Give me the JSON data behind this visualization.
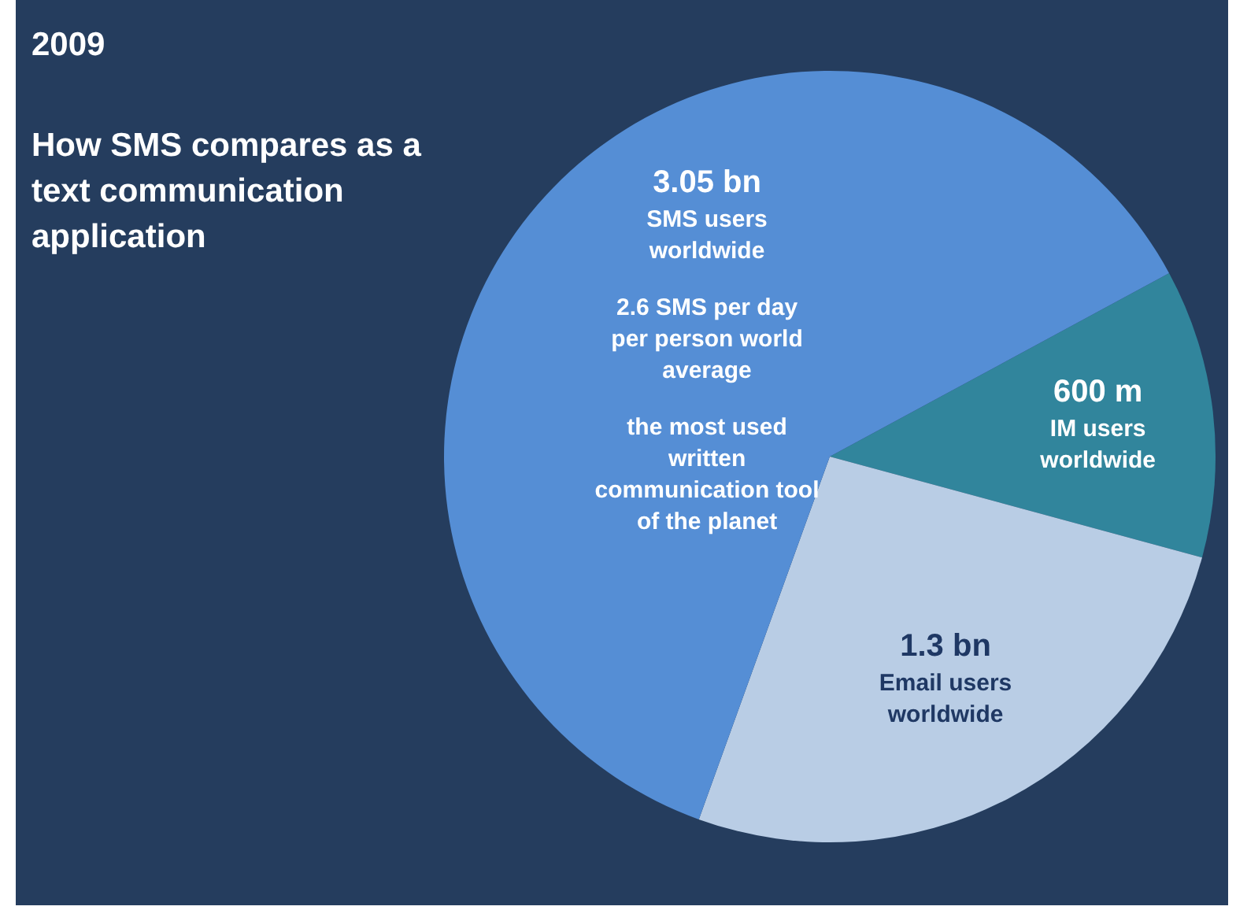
{
  "chart_data": {
    "type": "pie",
    "title": "2009",
    "subtitle": "How SMS compares as a text communication application",
    "categories": [
      "IM users worldwide",
      "Email users worldwide",
      "SMS users worldwide"
    ],
    "values": [
      12.1,
      26.3,
      61.6
    ],
    "colors": [
      "#31859c",
      "#b9cde5",
      "#558ed5"
    ],
    "annotations": [
      {
        "text": "600 m",
        "x": "IM users worldwide"
      },
      {
        "text": "1.3 bn",
        "x": "Email users worldwide"
      },
      {
        "text": "3.05 bn",
        "x": "SMS users worldwide"
      },
      "2.6 SMS per day per person world average",
      "the most used written communication tool of the planet"
    ]
  }
}
